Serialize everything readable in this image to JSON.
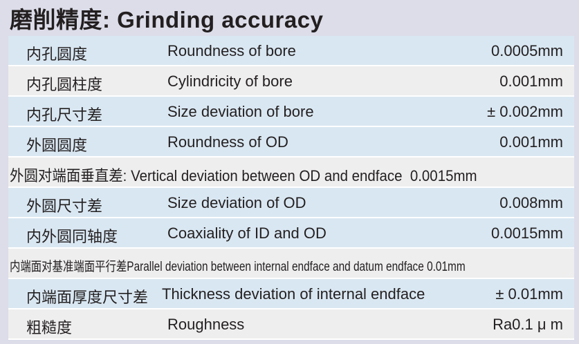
{
  "title": "磨削精度: Grinding accuracy",
  "rows": [
    {
      "zh": "内孔圆度",
      "en": "Roundness of bore",
      "value": "0.0005mm",
      "bg": "blue"
    },
    {
      "zh": "内孔圆柱度",
      "en": "Cylindricity of bore",
      "value": "0.001mm",
      "bg": "gray"
    },
    {
      "zh": "内孔尺寸差",
      "en": "Size deviation of bore",
      "value": "± 0.002mm",
      "bg": "blue"
    },
    {
      "zh": "外圆圆度",
      "en": "Roundness of OD",
      "value": "0.001mm",
      "bg": "blue"
    },
    {
      "zh": "外圆对端面垂直差:",
      "en": "Vertical deviation between OD and endface",
      "value": "0.0015mm",
      "bg": "gray"
    },
    {
      "zh": "外圆尺寸差",
      "en": "Size deviation of OD",
      "value": "0.008mm",
      "bg": "blue"
    },
    {
      "zh": "内外圆同轴度",
      "en": "Coaxiality of ID and OD",
      "value": "0.0015mm",
      "bg": "blue"
    },
    {
      "zh": "内端面对基准端面平行差",
      "en": "Parallel deviation between internal endface and datum endface",
      "value": "0.01mm",
      "bg": "gray"
    },
    {
      "zh": "内端面厚度尺寸差",
      "en": "Thickness deviation of internal endface",
      "value": "± 0.01mm",
      "bg": "blue"
    },
    {
      "zh": "粗糙度",
      "en": "Roughness",
      "value": "Ra0.1 μ m",
      "bg": "gray"
    }
  ],
  "colors": {
    "background": "#dcdde9",
    "row_blue": "#d9e7f2",
    "row_gray": "#eeeeee"
  }
}
